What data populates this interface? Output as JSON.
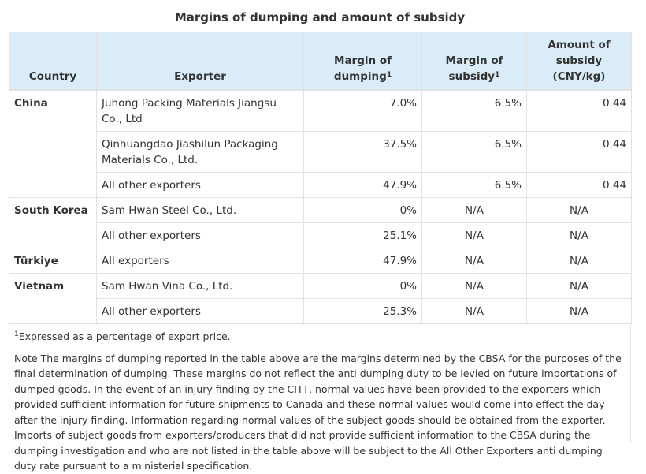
{
  "caption": "Margins of dumping and amount of subsidy",
  "headers": {
    "country": "Country",
    "exporter": "Exporter",
    "dumping": "Margin of dumping",
    "subsidy": "Margin of subsidy",
    "amount": "Amount of subsidy (CNY/kg)",
    "footnote_mark": "1"
  },
  "groups": [
    {
      "country": "China",
      "rows": [
        {
          "exporter": "Juhong Packing Materials Jiangsu Co., Ltd",
          "dumping": "7.0%",
          "subsidy": "6.5%",
          "amount": "0.44"
        },
        {
          "exporter": "Qinhuangdao Jiashilun Packaging Materials Co., Ltd.",
          "dumping": "37.5%",
          "subsidy": "6.5%",
          "amount": "0.44"
        },
        {
          "exporter": "All other exporters",
          "dumping": "47.9%",
          "subsidy": "6.5%",
          "amount": "0.44"
        }
      ]
    },
    {
      "country": "South Korea",
      "rows": [
        {
          "exporter": "Sam Hwan Steel Co., Ltd.",
          "dumping": "0%",
          "subsidy": "N/A",
          "amount": "N/A"
        },
        {
          "exporter": "All other exporters",
          "dumping": "25.1%",
          "subsidy": "N/A",
          "amount": "N/A"
        }
      ]
    },
    {
      "country": "Türkiye",
      "rows": [
        {
          "exporter": "All exporters",
          "dumping": "47.9%",
          "subsidy": "N/A",
          "amount": "N/A"
        }
      ]
    },
    {
      "country": "Vietnam",
      "rows": [
        {
          "exporter": "Sam Hwan Vina Co., Ltd.",
          "dumping": "0%",
          "subsidy": "N/A",
          "amount": "N/A"
        },
        {
          "exporter": "All other exporters",
          "dumping": "25.3%",
          "subsidy": "N/A",
          "amount": "N/A"
        }
      ]
    }
  ],
  "footer": {
    "footnote_mark": "1",
    "footnote": "Expressed as a percentage of export price.",
    "note": "Note The margins of dumping reported in the table above are the margins determined by the CBSA for the purposes of the final determination of dumping. These margins do not reflect the anti dumping duty to be levied on future importations of dumped goods. In the event of an injury finding by the CITT, normal values have been provided to the exporters which provided sufficient information for future shipments to Canada and these normal values would come into effect the day after the injury finding. Information regarding normal values of the subject goods should be obtained from the exporter. Imports of subject goods from exporters/producers that did not provide sufficient information to the CBSA during the dumping investigation and who are not listed in the table above will be subject to the All Other Exporters anti dumping duty rate pursuant to a ministerial specification."
  }
}
